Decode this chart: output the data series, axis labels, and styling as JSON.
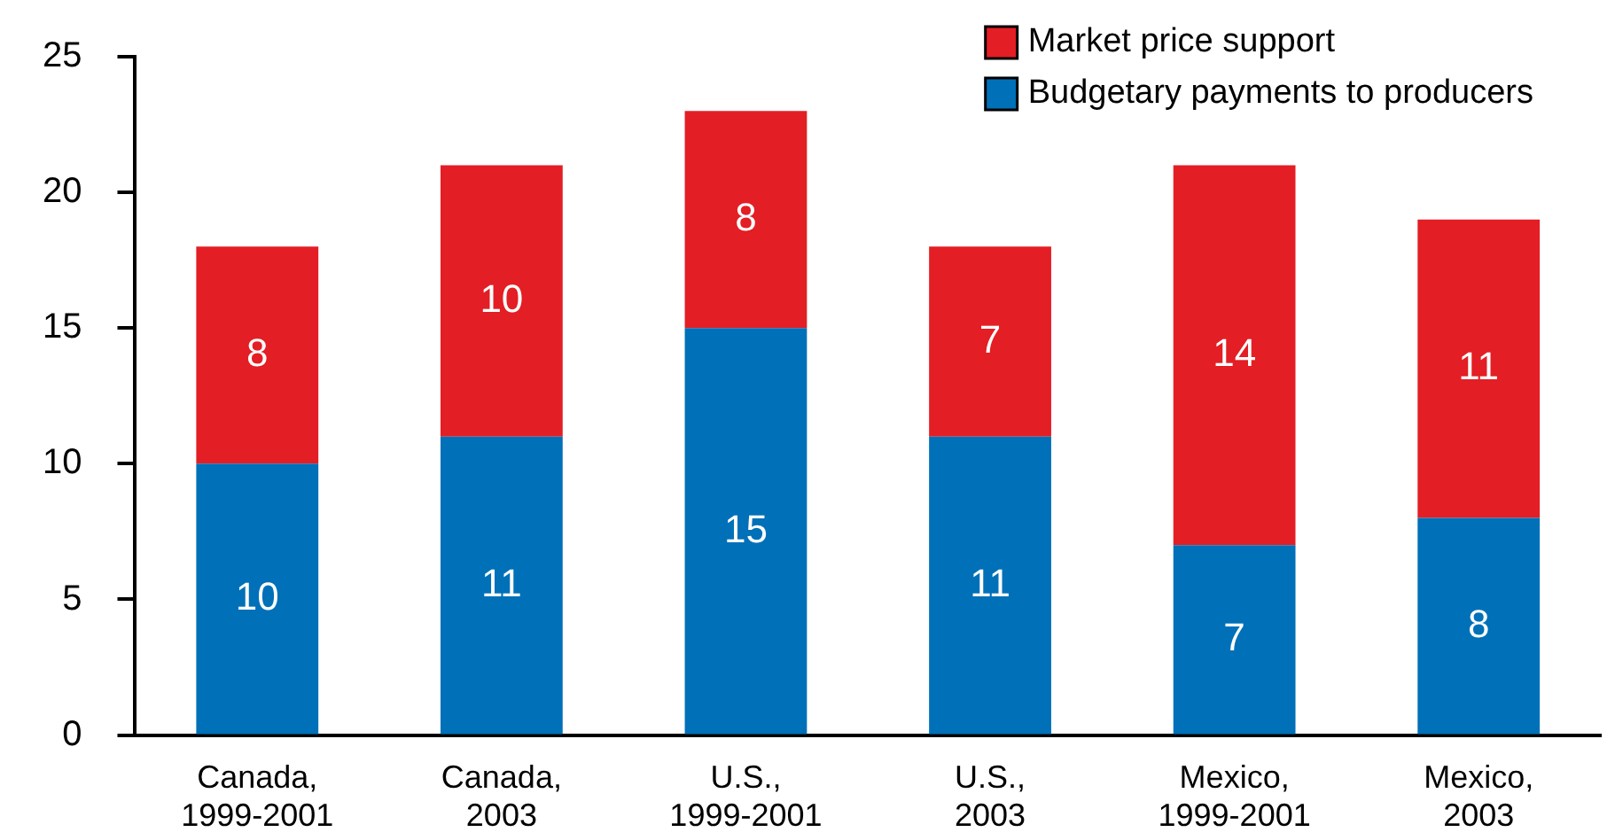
{
  "chart_data": {
    "type": "bar",
    "stacked": true,
    "categories": [
      "Canada, 1999-2001",
      "Canada, 2003",
      "U.S., 1999-2001",
      "U.S., 2003",
      "Mexico, 1999-2001",
      "Mexico, 2003"
    ],
    "series": [
      {
        "name": "Budgetary payments to producers",
        "color": "#0070b8",
        "values": [
          10,
          11,
          15,
          11,
          7,
          8
        ]
      },
      {
        "name": "Market price support",
        "color": "#e31e24",
        "values": [
          8,
          10,
          8,
          7,
          14,
          11
        ]
      }
    ],
    "ylim": [
      0,
      25
    ],
    "yticks": [
      0,
      5,
      10,
      15,
      20,
      25
    ],
    "grid": false,
    "legend": "top right",
    "data_labels": true
  }
}
